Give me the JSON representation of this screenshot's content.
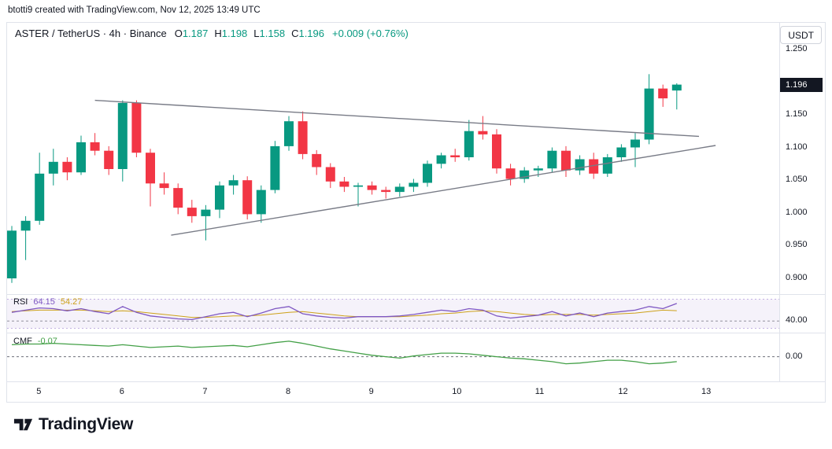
{
  "attribution": {
    "text": "btotti9 created with TradingView.com, Nov 12, 2025 13:49 UTC"
  },
  "header": {
    "title": "ASTER / TetherUS · 4h · Binance",
    "o_label": "O",
    "o": "1.187",
    "h_label": "H",
    "h": "1.198",
    "l_label": "L",
    "l": "1.158",
    "c_label": "C",
    "c": "1.196",
    "change": "+0.009 (+0.76%)",
    "currency_button": "USDT"
  },
  "price_axis": {
    "labels": [
      {
        "text": "1.250",
        "value": 1.25
      },
      {
        "text": "1.150",
        "value": 1.15
      },
      {
        "text": "1.100",
        "value": 1.1
      },
      {
        "text": "1.050",
        "value": 1.05
      },
      {
        "text": "1.000",
        "value": 1.0
      },
      {
        "text": "0.950",
        "value": 0.95
      },
      {
        "text": "0.900",
        "value": 0.9
      }
    ],
    "price_tag": {
      "text": "1.196",
      "value": 1.196
    }
  },
  "time_axis": {
    "labels": [
      "5",
      "6",
      "7",
      "8",
      "9",
      "10",
      "11",
      "12",
      "13"
    ],
    "indices": [
      2,
      8,
      14,
      20,
      26,
      32,
      38,
      44,
      50
    ]
  },
  "footer": {
    "brand": "TradingView"
  },
  "colors": {
    "up": "#089981",
    "down": "#F23645",
    "trendline": "#787B86",
    "rsi": "#7E57C2",
    "rsi_ma": "#CDA119",
    "rsi_band_fill": "rgba(126,87,194,0.08)",
    "cmf": "#43A047",
    "zero_line": "#4A4E59",
    "tag_bg": "#131722",
    "tag_text": "#FFFFFF",
    "separator": "#E0E3EB",
    "text": "#131722"
  },
  "chart_data": {
    "type": "candlestick",
    "title": "ASTER / TetherUS · 4h · Binance",
    "symbol": "ASTER / TetherUS",
    "interval": "4h",
    "exchange": "Binance",
    "ohlc_current": {
      "o": 1.187,
      "h": 1.198,
      "l": 1.158,
      "c": 1.196,
      "change_abs": 0.009,
      "change_pct": 0.76
    },
    "price_range": [
      0.876,
      1.258
    ],
    "x_day_labels": [
      "5",
      "6",
      "7",
      "8",
      "9",
      "10",
      "11",
      "12",
      "13"
    ],
    "candles": [
      [
        0.9,
        0.98,
        0.893,
        0.973
      ],
      [
        0.973,
        0.995,
        0.928,
        0.988
      ],
      [
        0.988,
        1.092,
        0.982,
        1.06
      ],
      [
        1.06,
        1.098,
        1.042,
        1.078
      ],
      [
        1.078,
        1.085,
        1.05,
        1.062
      ],
      [
        1.062,
        1.118,
        1.058,
        1.108
      ],
      [
        1.108,
        1.122,
        1.088,
        1.095
      ],
      [
        1.095,
        1.102,
        1.058,
        1.067
      ],
      [
        1.067,
        1.172,
        1.048,
        1.168
      ],
      [
        1.168,
        1.172,
        1.085,
        1.092
      ],
      [
        1.092,
        1.098,
        1.01,
        1.045
      ],
      [
        1.045,
        1.062,
        1.028,
        1.038
      ],
      [
        1.038,
        1.045,
        0.998,
        1.008
      ],
      [
        1.008,
        1.02,
        0.985,
        0.995
      ],
      [
        0.995,
        1.012,
        0.958,
        1.005
      ],
      [
        1.005,
        1.048,
        0.992,
        1.042
      ],
      [
        1.042,
        1.058,
        1.028,
        1.05
      ],
      [
        1.05,
        1.056,
        0.99,
        0.998
      ],
      [
        0.998,
        1.042,
        0.985,
        1.035
      ],
      [
        1.035,
        1.11,
        1.03,
        1.102
      ],
      [
        1.102,
        1.148,
        1.095,
        1.14
      ],
      [
        1.14,
        1.155,
        1.082,
        1.09
      ],
      [
        1.09,
        1.096,
        1.058,
        1.07
      ],
      [
        1.07,
        1.076,
        1.038,
        1.048
      ],
      [
        1.048,
        1.055,
        1.032,
        1.04
      ],
      [
        1.04,
        1.046,
        1.01,
        1.042
      ],
      [
        1.042,
        1.048,
        1.028,
        1.035
      ],
      [
        1.035,
        1.04,
        1.022,
        1.032
      ],
      [
        1.032,
        1.045,
        1.025,
        1.04
      ],
      [
        1.04,
        1.052,
        1.032,
        1.046
      ],
      [
        1.046,
        1.08,
        1.04,
        1.075
      ],
      [
        1.075,
        1.092,
        1.068,
        1.088
      ],
      [
        1.088,
        1.098,
        1.078,
        1.085
      ],
      [
        1.085,
        1.142,
        1.08,
        1.125
      ],
      [
        1.125,
        1.148,
        1.112,
        1.12
      ],
      [
        1.12,
        1.128,
        1.06,
        1.068
      ],
      [
        1.068,
        1.075,
        1.042,
        1.052
      ],
      [
        1.052,
        1.07,
        1.046,
        1.065
      ],
      [
        1.065,
        1.072,
        1.055,
        1.068
      ],
      [
        1.068,
        1.1,
        1.062,
        1.095
      ],
      [
        1.095,
        1.102,
        1.055,
        1.065
      ],
      [
        1.065,
        1.088,
        1.058,
        1.082
      ],
      [
        1.082,
        1.092,
        1.052,
        1.06
      ],
      [
        1.06,
        1.09,
        1.055,
        1.085
      ],
      [
        1.085,
        1.105,
        1.078,
        1.1
      ],
      [
        1.1,
        1.122,
        1.07,
        1.112
      ],
      [
        1.112,
        1.212,
        1.105,
        1.19
      ],
      [
        1.19,
        1.196,
        1.162,
        1.175
      ],
      [
        1.187,
        1.198,
        1.158,
        1.196
      ]
    ],
    "trendlines": [
      {
        "name": "upper-triangle-line",
        "i1": 6.0,
        "p1": 1.172,
        "i2": 49.6,
        "p2": 1.117
      },
      {
        "name": "lower-triangle-line",
        "i1": 11.5,
        "p1": 0.966,
        "i2": 50.8,
        "p2": 1.103
      }
    ],
    "indicators": {
      "rsi": {
        "title": "RSI",
        "value": "64.15",
        "ma_value": "54.27",
        "axis_label": {
          "text": "40.00",
          "value": 40
        },
        "range": [
          24,
          76
        ],
        "bands": [
          30,
          70
        ],
        "series": [
          52,
          55,
          58,
          57,
          54,
          57,
          53,
          50,
          60,
          52,
          47,
          45,
          43,
          42,
          46,
          50,
          52,
          46,
          51,
          57,
          60,
          50,
          47,
          45,
          44,
          46,
          46,
          46,
          47,
          49,
          52,
          55,
          53,
          57,
          55,
          47,
          44,
          46,
          48,
          53,
          47,
          51,
          46,
          51,
          53,
          55,
          60,
          57,
          64.15
        ],
        "ma_series": [
          53,
          54,
          55,
          55,
          55,
          55,
          54,
          53,
          54,
          53,
          51,
          49,
          47,
          45,
          45,
          46,
          47,
          47,
          48,
          50,
          52,
          53,
          51,
          49,
          47,
          46,
          46,
          46,
          46,
          47,
          48,
          50,
          51,
          53,
          54,
          53,
          51,
          49,
          48,
          49,
          49,
          49,
          48,
          49,
          50,
          51,
          53,
          55,
          54.27
        ]
      },
      "cmf": {
        "title": "CMF",
        "value": "-0.07",
        "axis_label": {
          "text": "0.00",
          "value": 0
        },
        "range": [
          -0.35,
          0.33
        ],
        "series": [
          0.17,
          0.18,
          0.18,
          0.19,
          0.18,
          0.17,
          0.16,
          0.15,
          0.17,
          0.15,
          0.13,
          0.14,
          0.15,
          0.13,
          0.14,
          0.15,
          0.16,
          0.14,
          0.17,
          0.2,
          0.22,
          0.19,
          0.15,
          0.11,
          0.08,
          0.05,
          0.02,
          0.0,
          -0.02,
          0.01,
          0.03,
          0.05,
          0.05,
          0.04,
          0.02,
          0.0,
          -0.02,
          -0.03,
          -0.05,
          -0.07,
          -0.1,
          -0.09,
          -0.07,
          -0.05,
          -0.05,
          -0.07,
          -0.1,
          -0.09,
          -0.07
        ]
      }
    }
  }
}
